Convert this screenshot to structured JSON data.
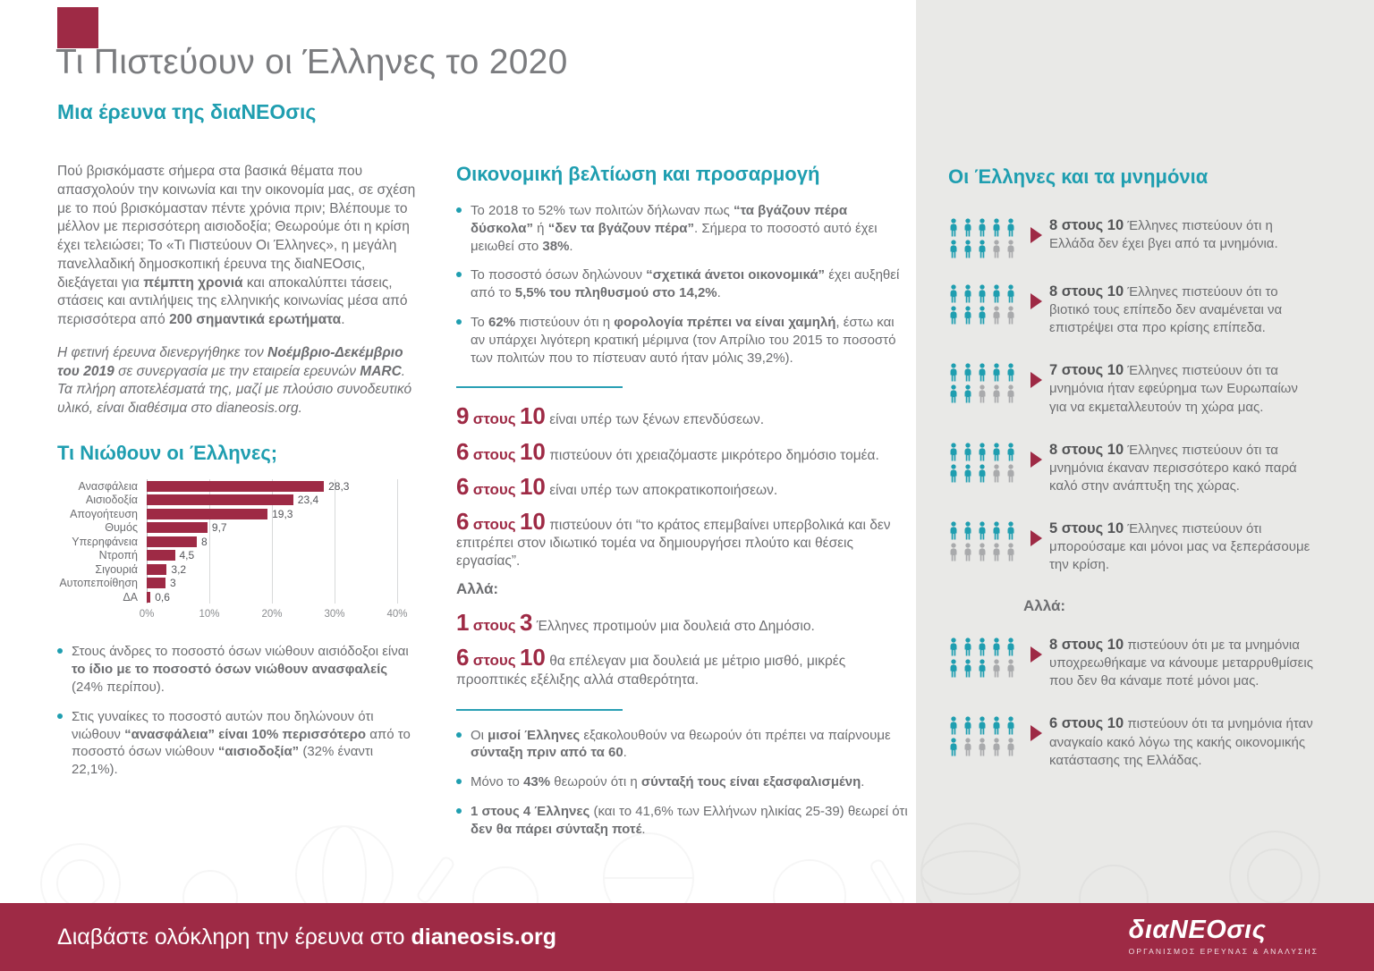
{
  "page": {
    "title": "Τι Πιστεύουν οι Έλληνες το 2020",
    "subtitle": "Μια έρευνα της διαΝΕΟσις"
  },
  "colors": {
    "maroon": "#9e2a45",
    "teal": "#1f9eb0",
    "body_gray": "#6d6e71",
    "panel_bg": "#e9e9e7",
    "person_off": "#a9aaac"
  },
  "intro": {
    "p1": [
      [
        "Πού βρισκόμαστε σήμερα στα βασικά θέματα που απασχολούν την κοινωνία και την οικονομία μας, σε σχέση με το πού βρισκόμασταν πέντε χρόνια πριν; Βλέπουμε το μέλλον με περισσότερη αισιοδοξία; Θεωρούμε ότι η κρίση έχει τελειώσει; Το «Τι Πιστεύουν Οι Έλληνες», η μεγάλη πανελλαδική δημοσκοπική έρευνα της διαΝΕΟσις, διεξάγεται για ",
        0
      ],
      [
        "πέμπτη χρονιά",
        1
      ],
      [
        " και αποκαλύπτει τάσεις, στάσεις και αντιλήψεις της ελληνικής κοινωνίας μέσα από  περισσότερα από ",
        0
      ],
      [
        "200 σημαντικά ερωτήματα",
        1
      ],
      [
        ".",
        0
      ]
    ],
    "p2": [
      [
        "Η φετινή έρευνα διενεργήθηκε τον ",
        0
      ],
      [
        "Νοέμβριο-Δεκέμβριο του 2019",
        1
      ],
      [
        " σε συνεργασία με την εταιρεία ερευνών ",
        0
      ],
      [
        "MARC",
        1
      ],
      [
        ". Τα πλήρη αποτελέσματά της, μαζί με πλούσιο συνοδευτικό υλικό, είναι διαθέσιμα στο dianeosis.org.",
        0
      ]
    ]
  },
  "feelings": {
    "heading": "Τι Νιώθουν οι Έλληνες;",
    "bullets": [
      [
        [
          "Στους άνδρες το ποσοστό όσων νιώθουν αισιόδοξοι είναι ",
          0
        ],
        [
          "το ίδιο με το ποσοστό όσων νιώθουν ανασφαλείς",
          1
        ],
        [
          " (24% περίπου).",
          0
        ]
      ],
      [
        [
          "Στις γυναίκες το ποσοστό αυτών που δηλώνουν ότι νιώθουν ",
          0
        ],
        [
          "“ανασφάλεια” είναι 10% περισσότερο",
          1
        ],
        [
          " από το ποσοστό όσων νιώθουν ",
          0
        ],
        [
          "“αισιοδοξία”",
          1
        ],
        [
          " (32% έναντι 22,1%).",
          0
        ]
      ]
    ]
  },
  "chart_data": {
    "type": "bar",
    "orientation": "horizontal",
    "title": "Τι Νιώθουν οι Έλληνες;",
    "categories": [
      "Ανασφάλεια",
      "Αισιοδοξία",
      "Απογοήτευση",
      "Θυμός",
      "Υπερηφάνεια",
      "Ντροπή",
      "Σιγουριά",
      "Αυτοπεποίθηση",
      "ΔΑ"
    ],
    "values": [
      28.3,
      23.4,
      19.3,
      9.7,
      8,
      4.5,
      3.2,
      3,
      0.6
    ],
    "value_labels": [
      "28,3",
      "23,4",
      "19,3",
      "9,7",
      "8",
      "4,5",
      "3,2",
      "3",
      "0,6"
    ],
    "xlim": [
      0,
      40
    ],
    "x_ticks": [
      "0%",
      "10%",
      "20%",
      "30%",
      "40%"
    ],
    "bar_color": "#9e2a45",
    "grid": true,
    "legend": false
  },
  "economy": {
    "heading": "Οικονομική βελτίωση και προσαρμογή",
    "bullets": [
      [
        [
          "Το 2018 το 52% των πολιτών δήλωναν πως ",
          0
        ],
        [
          "“τα βγάζουν πέρα δύσκολα”",
          1
        ],
        [
          " ή ",
          0
        ],
        [
          "“δεν τα βγάζουν πέρα”",
          1
        ],
        [
          ". Σήμερα το ποσοστό αυτό έχει μειωθεί στο ",
          0
        ],
        [
          "38%",
          1
        ],
        [
          ".",
          0
        ]
      ],
      [
        [
          "Το ποσοστό όσων δηλώνουν ",
          0
        ],
        [
          "“σχετικά άνετοι οικονομικά”",
          1
        ],
        [
          " έχει αυξηθεί από το ",
          0
        ],
        [
          "5,5% του πληθυσμού στο 14,2%",
          1
        ],
        [
          ".",
          0
        ]
      ],
      [
        [
          "Το ",
          0
        ],
        [
          "62%",
          1
        ],
        [
          " πιστεύουν ότι η ",
          0
        ],
        [
          "φορολογία πρέπει να είναι χαμηλή",
          1
        ],
        [
          ", έστω και αν υπάρχει λιγότερη κρατική μέριμνα (τον Απρίλιο του 2015 το ποσοστό των πολιτών που το πίστευαν αυτό ήταν μόλις 39,2%).",
          0
        ]
      ]
    ],
    "stats": [
      {
        "lead": "9 στους 10",
        "text": "είναι υπέρ των ξένων επενδύσεων."
      },
      {
        "lead": "6 στους 10",
        "text": "πιστεύουν ότι χρειαζόμαστε μικρότερο δημόσιο τομέα."
      },
      {
        "lead": "6 στους 10",
        "text": "είναι υπέρ των αποκρατικοποιήσεων."
      },
      {
        "lead": "6 στους 10",
        "text": "πιστεύουν ότι “το κράτος επεμβαίνει υπερβολικά και δεν επιτρέπει στον ιδιωτικό τομέα να δημιουργήσει πλούτο και θέσεις εργασίας”."
      },
      {
        "label": "Αλλά:"
      },
      {
        "lead": "1 στους 3",
        "text": "Έλληνες προτιμούν μια δουλειά στο Δημόσιο."
      },
      {
        "lead": "6 στους 10",
        "text": "θα επέλεγαν μια δουλειά με μέτριο μισθό, μικρές προοπτικές εξέλιξης αλλά σταθερότητα."
      }
    ],
    "pension_bullets": [
      [
        [
          "Οι ",
          0
        ],
        [
          "μισοί Έλληνες",
          1
        ],
        [
          " εξακολουθούν να θεωρούν ότι πρέπει να παίρνουμε ",
          0
        ],
        [
          "σύνταξη πριν από τα 60",
          1
        ],
        [
          ".",
          0
        ]
      ],
      [
        [
          "Μόνο το ",
          0
        ],
        [
          "43%",
          1
        ],
        [
          " θεωρούν ότι η ",
          0
        ],
        [
          "σύνταξή τους είναι εξασφαλισμένη",
          1
        ],
        [
          ".",
          0
        ]
      ],
      [
        [
          "1 στους 4 Έλληνες",
          1
        ],
        [
          " (και το 41,6% των Ελλήνων ηλικίας 25-39) θεωρεί ότι ",
          0
        ],
        [
          "δεν θα πάρει σύνταξη ποτέ",
          1
        ],
        [
          ".",
          0
        ]
      ]
    ]
  },
  "memoranda": {
    "heading": "Οι Έλληνες και τα μνημόνια",
    "total_per_item": 10,
    "items": [
      {
        "count": 8,
        "lead": "8 στους 10",
        "text": "Έλληνες πιστεύουν ότι η Ελλάδα δεν έχει βγει από τα μνημόνια."
      },
      {
        "count": 8,
        "lead": "8 στους 10",
        "text": "Έλληνες πιστεύουν ότι το βιοτικό τους επίπεδο δεν αναμένεται να επιστρέψει στα προ κρίσης επίπεδα."
      },
      {
        "count": 7,
        "lead": "7 στους 10",
        "text": "Έλληνες πιστεύουν ότι τα μνημόνια ήταν εφεύρημα των Ευρωπαίων για να εκμεταλλευτούν τη χώρα μας."
      },
      {
        "count": 8,
        "lead": "8 στους 10",
        "text": "Έλληνες πιστεύουν ότι τα μνημόνια έκαναν περισσότερο κακό παρά καλό στην ανάπτυξη της χώρας."
      },
      {
        "count": 5,
        "lead": "5 στους 10",
        "text": "Έλληνες πιστεύουν ότι μπορούσαμε και μόνοι μας να ξεπεράσουμε την κρίση."
      },
      {
        "label": "Αλλά:"
      },
      {
        "count": 8,
        "lead": "8 στους 10",
        "text": "πιστεύουν ότι με τα μνημόνια υποχρεωθήκαμε να κάνουμε μεταρρυθμίσεις που δεν θα κάναμε ποτέ μόνοι μας."
      },
      {
        "count": 6,
        "lead": "6 στους 10",
        "text": "πιστεύουν ότι τα μνημόνια ήταν αναγκαίο κακό λόγω της κακής οικονομικής κατάστασης της Ελλάδας."
      }
    ]
  },
  "footer": {
    "text": "Διαβάστε ολόκληρη την έρευνα στο ",
    "link": "dianeosis.org",
    "logo": "διαΝΕΟσις",
    "tagline": "ΟΡΓΑΝΙΣΜΟΣ ΕΡΕΥΝΑΣ & ΑΝΑΛΥΣΗΣ"
  }
}
